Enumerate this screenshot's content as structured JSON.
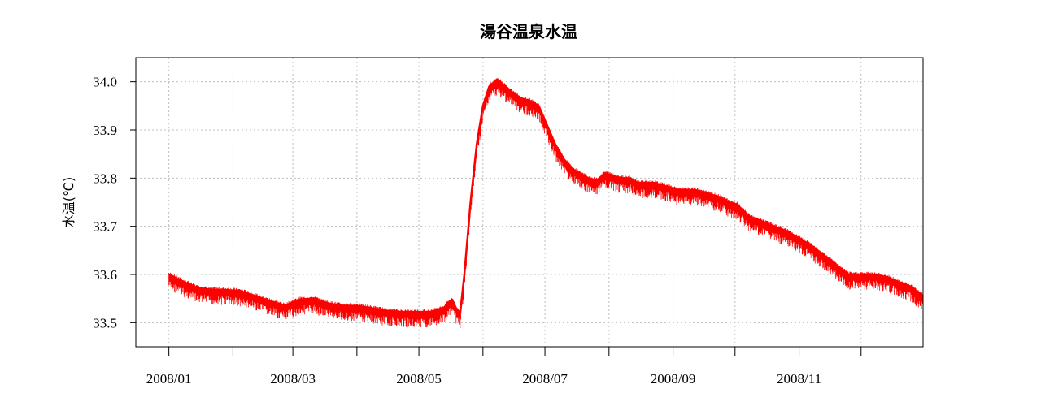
{
  "chart_data": {
    "type": "line",
    "title": "湯谷温泉水温",
    "xlabel": "",
    "ylabel": "水温(℃)",
    "x_tick_labels": [
      "2008/01",
      "2008/03",
      "2008/05",
      "2008/07",
      "2008/09",
      "2008/11"
    ],
    "x_minor_ticks": [
      "2008/02",
      "2008/04",
      "2008/06",
      "2008/08",
      "2008/10",
      "2008/12"
    ],
    "y_ticks": [
      33.5,
      33.6,
      33.7,
      33.8,
      33.9,
      34.0
    ],
    "y_tick_labels": [
      "33.5",
      "33.6",
      "33.7",
      "33.8",
      "33.9",
      "34.0"
    ],
    "ylim": [
      33.45,
      34.05
    ],
    "xlim": [
      "2007-12-16",
      "2008-12-31"
    ],
    "grid": true,
    "color": "#ff0000",
    "series": [
      {
        "x": [
          "2008-01-01",
          "2008-01-08",
          "2008-01-15",
          "2008-01-22",
          "2008-01-29",
          "2008-02-05",
          "2008-02-12",
          "2008-02-19",
          "2008-02-26",
          "2008-03-04",
          "2008-03-11",
          "2008-03-18",
          "2008-03-25",
          "2008-04-01",
          "2008-04-08",
          "2008-04-15",
          "2008-04-22",
          "2008-04-29",
          "2008-05-06",
          "2008-05-13",
          "2008-05-15",
          "2008-05-17",
          "2008-05-19",
          "2008-05-21",
          "2008-05-23",
          "2008-05-26",
          "2008-05-29",
          "2008-06-01",
          "2008-06-04",
          "2008-06-08",
          "2008-06-12",
          "2008-06-16",
          "2008-06-20",
          "2008-06-24",
          "2008-06-28",
          "2008-07-02",
          "2008-07-06",
          "2008-07-10",
          "2008-07-14",
          "2008-07-18",
          "2008-07-22",
          "2008-07-26",
          "2008-07-30",
          "2008-08-03",
          "2008-08-07",
          "2008-08-11",
          "2008-08-15",
          "2008-08-19",
          "2008-08-23",
          "2008-08-27",
          "2008-08-31",
          "2008-09-04",
          "2008-09-08",
          "2008-09-12",
          "2008-09-16",
          "2008-09-20",
          "2008-09-24",
          "2008-09-28",
          "2008-10-02",
          "2008-10-08",
          "2008-10-14",
          "2008-10-20",
          "2008-10-26",
          "2008-11-01",
          "2008-11-07",
          "2008-11-13",
          "2008-11-19",
          "2008-11-25",
          "2008-12-01",
          "2008-12-07",
          "2008-12-13",
          "2008-12-19",
          "2008-12-25",
          "2008-12-31"
        ],
        "y": [
          33.6,
          33.585,
          33.572,
          33.568,
          33.568,
          33.565,
          33.555,
          33.545,
          33.535,
          33.548,
          33.55,
          33.54,
          33.535,
          33.535,
          33.53,
          33.525,
          33.522,
          33.522,
          33.522,
          33.53,
          33.54,
          33.548,
          33.53,
          33.52,
          33.6,
          33.75,
          33.87,
          33.95,
          33.99,
          34.005,
          33.99,
          33.975,
          33.965,
          33.96,
          33.95,
          33.91,
          33.87,
          33.84,
          33.82,
          33.81,
          33.8,
          33.795,
          33.81,
          33.805,
          33.8,
          33.8,
          33.79,
          33.79,
          33.79,
          33.785,
          33.78,
          33.775,
          33.775,
          33.775,
          33.77,
          33.765,
          33.76,
          33.75,
          33.745,
          33.72,
          33.71,
          33.7,
          33.69,
          33.675,
          33.66,
          33.64,
          33.62,
          33.6,
          33.6,
          33.6,
          33.595,
          33.585,
          33.575,
          33.555
        ]
      }
    ]
  }
}
